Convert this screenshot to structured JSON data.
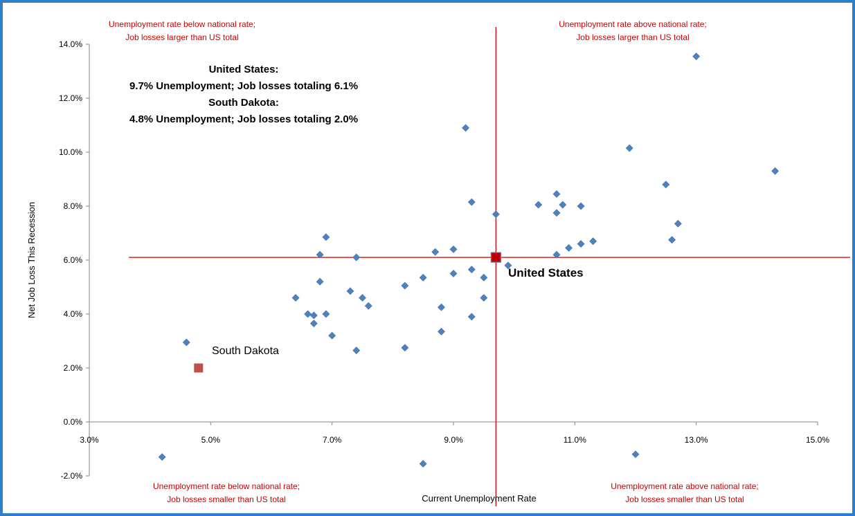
{
  "chart_data": {
    "type": "scatter",
    "xlabel": "Current Unemployment Rate",
    "ylabel": "Net Job Loss This Recession",
    "xlim": [
      3.0,
      15.0
    ],
    "ylim": [
      -2.0,
      14.0
    ],
    "x_ticks": [
      "3.0%",
      "5.0%",
      "7.0%",
      "9.0%",
      "11.0%",
      "13.0%",
      "15.0%"
    ],
    "y_ticks": [
      "-2.0%",
      "0.0%",
      "2.0%",
      "4.0%",
      "6.0%",
      "8.0%",
      "10.0%",
      "12.0%",
      "14.0%"
    ],
    "grid": false,
    "reference_lines": {
      "x": 9.7,
      "y": 6.1,
      "color": "#cc0000"
    },
    "states_color": "#4f81bd",
    "states": [
      {
        "x": 4.2,
        "y": -1.3
      },
      {
        "x": 4.6,
        "y": 2.95
      },
      {
        "x": 6.4,
        "y": 4.6
      },
      {
        "x": 6.6,
        "y": 4.0
      },
      {
        "x": 6.7,
        "y": 3.95
      },
      {
        "x": 6.7,
        "y": 3.65
      },
      {
        "x": 6.8,
        "y": 6.2
      },
      {
        "x": 6.8,
        "y": 5.2
      },
      {
        "x": 6.9,
        "y": 6.85
      },
      {
        "x": 6.9,
        "y": 4.0
      },
      {
        "x": 7.0,
        "y": 3.2
      },
      {
        "x": 7.3,
        "y": 4.85
      },
      {
        "x": 7.4,
        "y": 6.1
      },
      {
        "x": 7.4,
        "y": 2.65
      },
      {
        "x": 7.5,
        "y": 4.6
      },
      {
        "x": 7.6,
        "y": 4.3
      },
      {
        "x": 8.2,
        "y": 5.05
      },
      {
        "x": 8.2,
        "y": 2.75
      },
      {
        "x": 8.5,
        "y": 5.35
      },
      {
        "x": 8.5,
        "y": -1.55
      },
      {
        "x": 8.7,
        "y": 6.3
      },
      {
        "x": 8.8,
        "y": 4.25
      },
      {
        "x": 8.8,
        "y": 3.35
      },
      {
        "x": 9.0,
        "y": 6.4
      },
      {
        "x": 9.0,
        "y": 5.5
      },
      {
        "x": 9.2,
        "y": 10.9
      },
      {
        "x": 9.3,
        "y": 8.15
      },
      {
        "x": 9.3,
        "y": 5.65
      },
      {
        "x": 9.3,
        "y": 3.9
      },
      {
        "x": 9.5,
        "y": 5.35
      },
      {
        "x": 9.5,
        "y": 4.6
      },
      {
        "x": 9.7,
        "y": 7.7
      },
      {
        "x": 9.9,
        "y": 5.8
      },
      {
        "x": 10.4,
        "y": 8.05
      },
      {
        "x": 10.7,
        "y": 8.45
      },
      {
        "x": 10.7,
        "y": 7.75
      },
      {
        "x": 10.7,
        "y": 6.2
      },
      {
        "x": 10.8,
        "y": 8.05
      },
      {
        "x": 10.9,
        "y": 6.45
      },
      {
        "x": 11.1,
        "y": 8.0
      },
      {
        "x": 11.1,
        "y": 6.6
      },
      {
        "x": 11.3,
        "y": 6.7
      },
      {
        "x": 11.9,
        "y": 10.15
      },
      {
        "x": 12.0,
        "y": -1.2
      },
      {
        "x": 12.5,
        "y": 8.8
      },
      {
        "x": 12.6,
        "y": 6.75
      },
      {
        "x": 12.7,
        "y": 7.35
      },
      {
        "x": 13.0,
        "y": 13.55
      },
      {
        "x": 14.3,
        "y": 9.3
      }
    ],
    "highlights": [
      {
        "label": "United States",
        "x": 9.7,
        "y": 6.1,
        "color": "#c00000"
      },
      {
        "label": "South Dakota",
        "x": 4.8,
        "y": 2.0,
        "color": "#c0504d"
      }
    ],
    "summary_lines": [
      "United States:",
      "9.7% Unemployment; Job losses totaling 6.1%",
      "South Dakota:",
      "4.8% Unemployment; Job losses totaling 2.0%"
    ],
    "quadrant_labels": {
      "top_left": [
        "Unemployment rate below national rate;",
        "Job losses larger than US total"
      ],
      "top_right": [
        "Unemployment rate above national rate;",
        "Job losses larger than US total"
      ],
      "bottom_left": [
        "Unemployment rate below national rate;",
        "Job losses smaller than US total"
      ],
      "bottom_right": [
        "Unemployment rate above national rate;",
        "Job losses smaller than US total"
      ]
    }
  }
}
